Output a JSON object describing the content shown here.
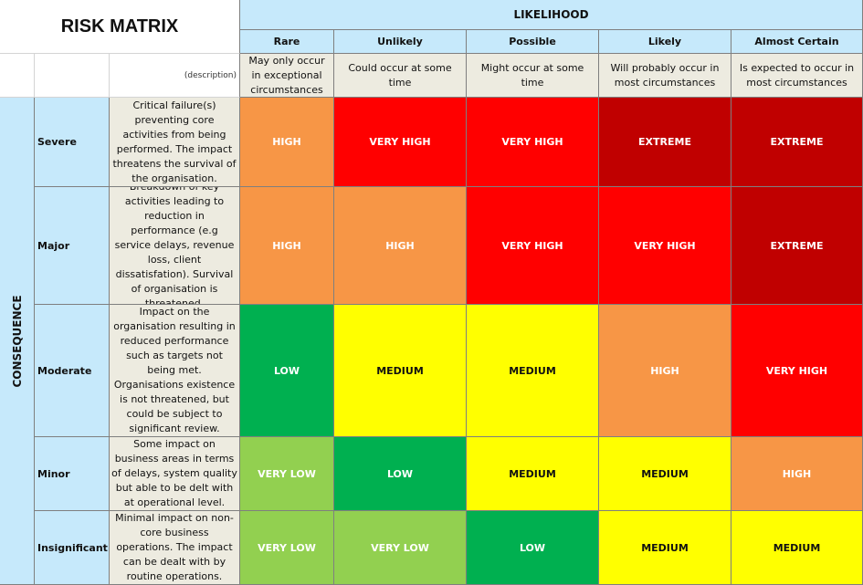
{
  "title": "RISK MATRIX",
  "likelihood_label": "LIKELIHOOD",
  "consequence_label": "CONSEQUENCE",
  "description_header": "(description)",
  "likelihood": [
    {
      "label": "Rare",
      "description": "May only occur in exceptional circumstances"
    },
    {
      "label": "Unlikely",
      "description": "Could occur at some time"
    },
    {
      "label": "Possible",
      "description": "Might occur at some time"
    },
    {
      "label": "Likely",
      "description": "Will probably occur in most circumstances"
    },
    {
      "label": "Almost Certain",
      "description": "Is expected to occur in most circumstances"
    }
  ],
  "consequences": [
    {
      "label": "Severe",
      "description": "Critical failure(s) preventing core activities from being performed. The impact threatens the survival of the organisation.",
      "ratings": [
        "HIGH",
        "VERY HIGH",
        "VERY HIGH",
        "EXTREME",
        "EXTREME"
      ]
    },
    {
      "label": "Major",
      "description": "Breakdown of key activities leading to reduction in performance (e.g service delays, revenue loss, client dissatisfation). Survival of organisation is threatened.",
      "ratings": [
        "HIGH",
        "HIGH",
        "VERY HIGH",
        "VERY HIGH",
        "EXTREME"
      ]
    },
    {
      "label": "Moderate",
      "description": "Impact on the organisation resulting in reduced performance such as targets not being met. Organisations existence is not threatened, but could be subject to significant review.",
      "ratings": [
        "LOW",
        "MEDIUM",
        "MEDIUM",
        "HIGH",
        "VERY HIGH"
      ]
    },
    {
      "label": "Minor",
      "description": "Some impact on business areas in terms of delays, system quality but able to be delt with at operational level.",
      "ratings": [
        "VERY LOW",
        "LOW",
        "MEDIUM",
        "MEDIUM",
        "HIGH"
      ]
    },
    {
      "label": "Insignificant",
      "description": "Minimal impact on non-core business operations. The impact can be dealt with by routine operations.",
      "ratings": [
        "VERY LOW",
        "VERY LOW",
        "LOW",
        "MEDIUM",
        "MEDIUM"
      ]
    }
  ],
  "rating_colors": {
    "EXTREME": "#c00000",
    "VERY HIGH": "#ff0000",
    "HIGH": "#f79646",
    "MEDIUM": "#ffff00",
    "LOW": "#00b050",
    "VERY LOW": "#92d050"
  },
  "rating_text_colors": {
    "EXTREME": "#ffffff",
    "VERY HIGH": "#ffffff",
    "HIGH": "#ffffff",
    "MEDIUM": "#111111",
    "LOW": "#ffffff",
    "VERY LOW": "#ffffff"
  }
}
